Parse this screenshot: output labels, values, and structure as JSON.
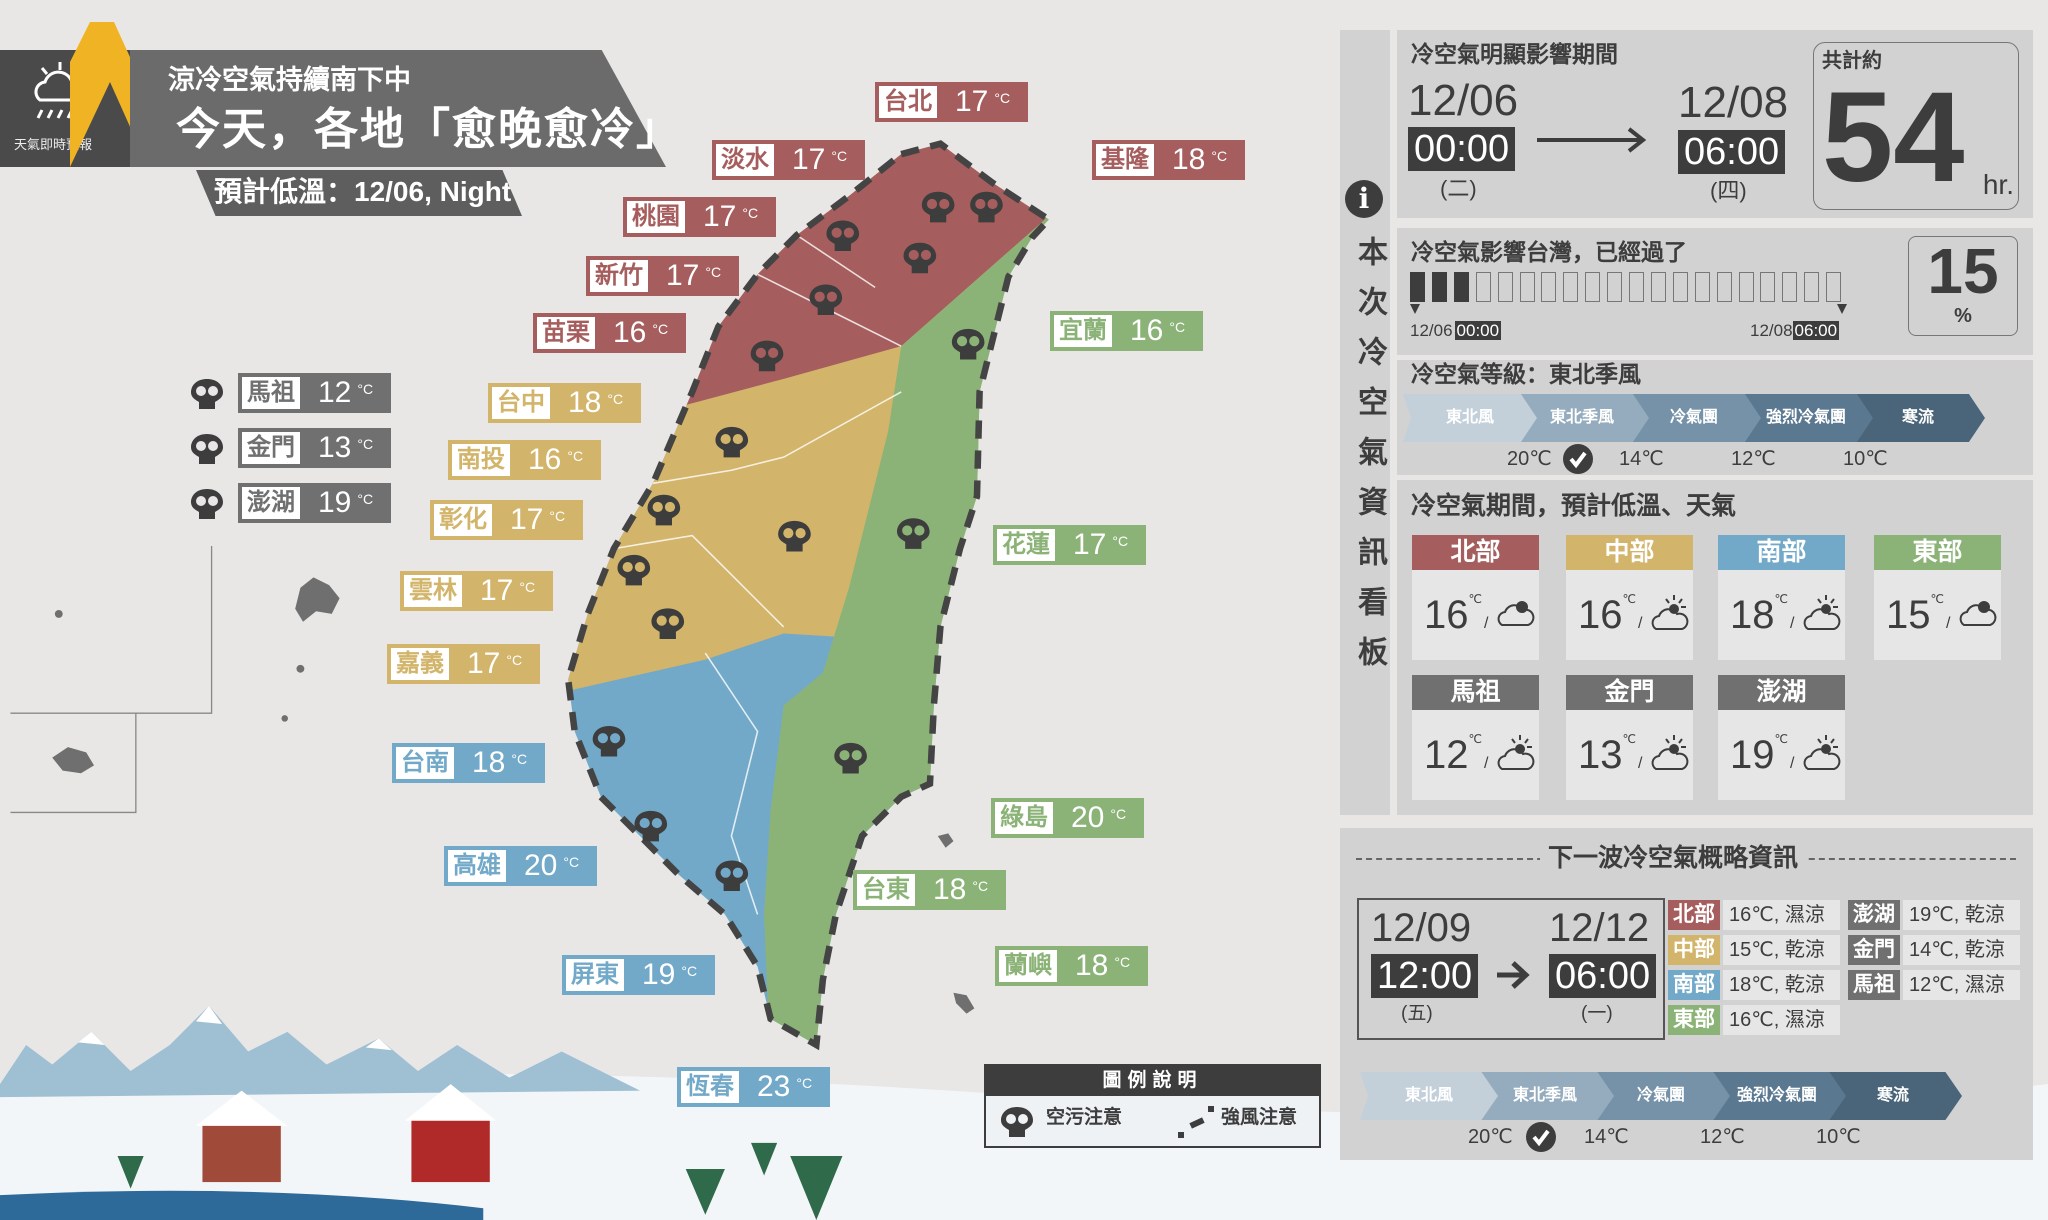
{
  "header": {
    "brand": "天氣即時預報",
    "subtitle": "涼冷空氣持續南下中",
    "title": "今天，各地「愈晚愈冷」",
    "tag": "預計低溫：12/06, Night"
  },
  "colors": {
    "north": "#a65d5d",
    "central": "#d2b46a",
    "south": "#72a9c9",
    "east": "#8cb377",
    "island": "#707070",
    "dark": "#3d3d3d"
  },
  "cities": [
    {
      "name": "台北",
      "temp": "17",
      "unit": "°C",
      "region": "north"
    },
    {
      "name": "淡水",
      "temp": "17",
      "unit": "°C",
      "region": "north"
    },
    {
      "name": "基隆",
      "temp": "18",
      "unit": "°C",
      "region": "north"
    },
    {
      "name": "桃園",
      "temp": "17",
      "unit": "°C",
      "region": "north"
    },
    {
      "name": "新竹",
      "temp": "17",
      "unit": "°C",
      "region": "north"
    },
    {
      "name": "苗栗",
      "temp": "16",
      "unit": "°C",
      "region": "north"
    },
    {
      "name": "宜蘭",
      "temp": "16",
      "unit": "°C",
      "region": "east"
    },
    {
      "name": "台中",
      "temp": "18",
      "unit": "°C",
      "region": "central"
    },
    {
      "name": "南投",
      "temp": "16",
      "unit": "°C",
      "region": "central"
    },
    {
      "name": "彰化",
      "temp": "17",
      "unit": "°C",
      "region": "central"
    },
    {
      "name": "雲林",
      "temp": "17",
      "unit": "°C",
      "region": "central"
    },
    {
      "name": "嘉義",
      "temp": "17",
      "unit": "°C",
      "region": "central"
    },
    {
      "name": "花蓮",
      "temp": "17",
      "unit": "°C",
      "region": "east"
    },
    {
      "name": "台南",
      "temp": "18",
      "unit": "°C",
      "region": "south"
    },
    {
      "name": "綠島",
      "temp": "20",
      "unit": "°C",
      "region": "east"
    },
    {
      "name": "高雄",
      "temp": "20",
      "unit": "°C",
      "region": "south"
    },
    {
      "name": "台東",
      "temp": "18",
      "unit": "°C",
      "region": "east"
    },
    {
      "name": "蘭嶼",
      "temp": "18",
      "unit": "°C",
      "region": "east"
    },
    {
      "name": "屏東",
      "temp": "19",
      "unit": "°C",
      "region": "south"
    },
    {
      "name": "恆春",
      "temp": "23",
      "unit": "°C",
      "region": "south"
    },
    {
      "name": "馬祖",
      "temp": "12",
      "unit": "°C",
      "region": "island"
    },
    {
      "name": "金門",
      "temp": "13",
      "unit": "°C",
      "region": "island"
    },
    {
      "name": "澎湖",
      "temp": "19",
      "unit": "°C",
      "region": "island"
    }
  ],
  "legend": {
    "title": "圖例說明",
    "air": "空污注意",
    "wind": "強風注意",
    "air_icon": "skull-icon",
    "wind_icon": "dashed-line-icon"
  },
  "panel": {
    "info_icon": "i",
    "side_title": "本次冷空氣資訊看板",
    "period": {
      "title": "冷空氣明顯影響期間",
      "start_date": "12/06",
      "start_time": "00:00",
      "start_day": "(二)",
      "end_date": "12/08",
      "end_time": "06:00",
      "end_day": "(四)",
      "total_label": "共計約",
      "total": "54",
      "total_unit": "hr."
    },
    "progress": {
      "title": "冷空氣影響台灣，已經過了",
      "percent": "15",
      "percent_unit": "%",
      "fraction": 0.15,
      "blocks_filled": 3,
      "blocks_total": 20,
      "start_date": "12/06",
      "start_time": "00:00",
      "end_date": "12/08",
      "end_time": "06:00"
    },
    "level": {
      "title": "冷空氣等級：東北季風",
      "steps": [
        "東北風",
        "東北季風",
        "冷氣團",
        "強烈冷氣團",
        "寒流"
      ],
      "thresholds": [
        "20℃",
        "14℃",
        "12℃",
        "10℃"
      ],
      "current": 1
    },
    "forecast": {
      "title": "冷空氣期間，預計低溫、天氣",
      "unit": "℃",
      "regions": [
        {
          "name": "北部",
          "temp": "16",
          "weather": "cloudy",
          "region": "north"
        },
        {
          "name": "中部",
          "temp": "16",
          "weather": "partly-cloudy",
          "region": "central"
        },
        {
          "name": "南部",
          "temp": "18",
          "weather": "partly-cloudy",
          "region": "south"
        },
        {
          "name": "東部",
          "temp": "15",
          "weather": "cloudy",
          "region": "east"
        },
        {
          "name": "馬祖",
          "temp": "12",
          "weather": "partly-cloudy",
          "region": "island"
        },
        {
          "name": "金門",
          "temp": "13",
          "weather": "partly-cloudy",
          "region": "island"
        },
        {
          "name": "澎湖",
          "temp": "19",
          "weather": "partly-cloudy",
          "region": "island"
        }
      ]
    }
  },
  "next": {
    "title": "下一波冷空氣概略資訊",
    "start_date": "12/09",
    "start_time": "12:00",
    "start_day": "(五)",
    "end_date": "12/12",
    "end_time": "06:00",
    "end_day": "(一)",
    "regions": [
      {
        "name": "北部",
        "text": "16℃, 濕涼",
        "region": "north"
      },
      {
        "name": "中部",
        "text": "15℃, 乾涼",
        "region": "central"
      },
      {
        "name": "南部",
        "text": "18℃, 乾涼",
        "region": "south"
      },
      {
        "name": "東部",
        "text": "16℃, 濕涼",
        "region": "east"
      },
      {
        "name": "澎湖",
        "text": "19℃, 乾涼",
        "region": "island"
      },
      {
        "name": "金門",
        "text": "14℃, 乾涼",
        "region": "island"
      },
      {
        "name": "馬祖",
        "text": "12℃, 濕涼",
        "region": "island"
      }
    ],
    "level": {
      "steps": [
        "東北風",
        "東北季風",
        "冷氣團",
        "強烈冷氣團",
        "寒流"
      ],
      "thresholds": [
        "20℃",
        "14℃",
        "12℃",
        "10℃"
      ],
      "current": 1
    }
  }
}
